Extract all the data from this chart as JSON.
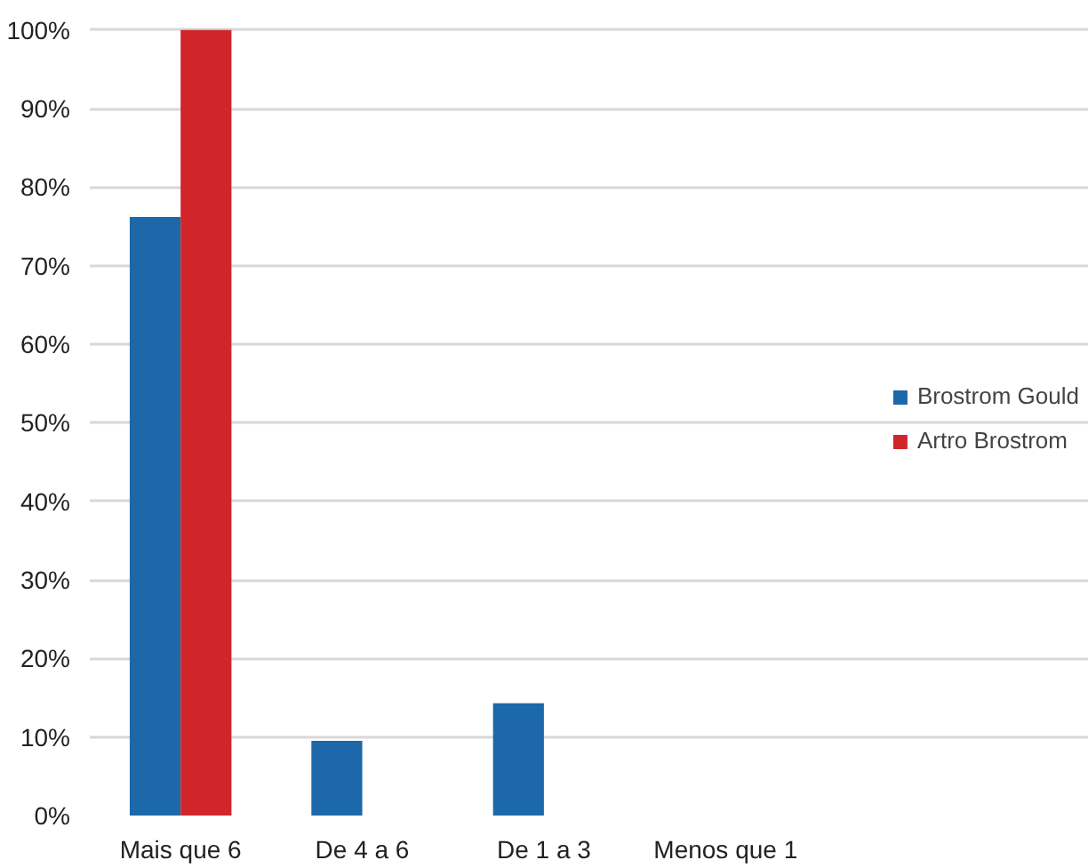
{
  "chart_data": {
    "type": "bar",
    "categories": [
      "Mais que 6",
      "De 4 a 6",
      "De 1 a 3",
      "Menos que 1"
    ],
    "series": [
      {
        "name": "Brostrom Gould",
        "color": "#1c68a8",
        "values": [
          76.2,
          9.5,
          14.3,
          0
        ]
      },
      {
        "name": "Artro Brostrom",
        "color": "#d0262b",
        "values": [
          100,
          0,
          0,
          0
        ]
      }
    ],
    "ylim": [
      0,
      100
    ],
    "yticks": [
      {
        "value": 0,
        "label": "0%"
      },
      {
        "value": 10,
        "label": "10%"
      },
      {
        "value": 20,
        "label": "20%"
      },
      {
        "value": 30,
        "label": "30%"
      },
      {
        "value": 40,
        "label": "40%"
      },
      {
        "value": 50,
        "label": "50%"
      },
      {
        "value": 60,
        "label": "60%"
      },
      {
        "value": 70,
        "label": "70%"
      },
      {
        "value": 80,
        "label": "80%"
      },
      {
        "value": 90,
        "label": "90%"
      },
      {
        "value": 100,
        "label": "100%"
      }
    ],
    "grid": "y",
    "legend": "right"
  }
}
